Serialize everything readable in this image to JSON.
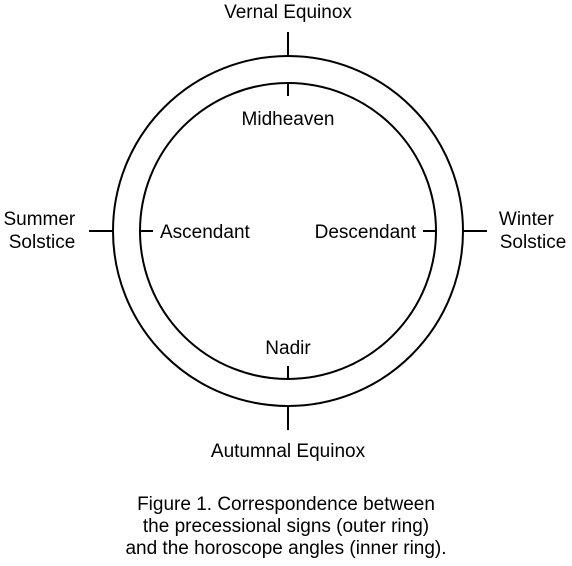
{
  "outer_ring": {
    "top": "Vernal Equinox",
    "bottom": "Autumnal Equinox",
    "left": [
      "Summer",
      "Solstice"
    ],
    "right": [
      "Winter",
      "Solstice"
    ]
  },
  "inner_ring": {
    "top": "Midheaven",
    "bottom": "Nadir",
    "left": "Ascendant",
    "right": "Descendant"
  },
  "caption": [
    "Figure 1. Correspondence between",
    "the precessional signs (outer ring)",
    "and the horoscope angles (inner ring)."
  ]
}
